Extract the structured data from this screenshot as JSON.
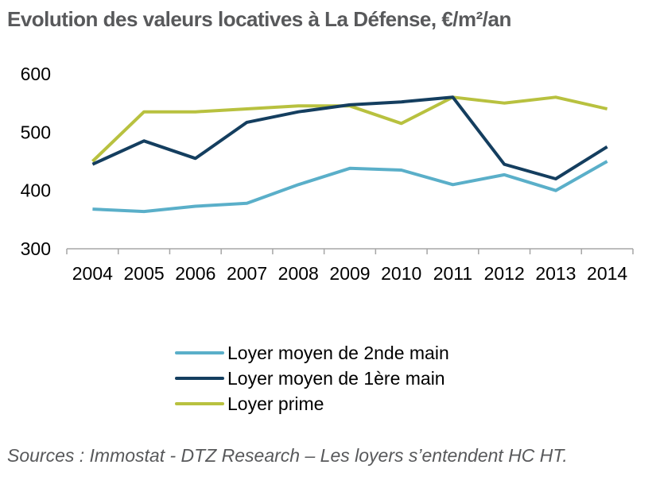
{
  "title": "Evolution des valeurs locatives à La Défense, €/m²/an",
  "source": "Sources : Immostat - DTZ Research – Les loyers s’entendent HC HT.",
  "chart_data": {
    "type": "line",
    "title": "Evolution des valeurs locatives à La Défense, €/m²/an",
    "xlabel": "",
    "ylabel": "",
    "x": [
      "2004",
      "2005",
      "2006",
      "2007",
      "2008",
      "2009",
      "2010",
      "2011",
      "2012",
      "2013",
      "2014"
    ],
    "ylim": [
      300,
      600
    ],
    "yticks": [
      "300",
      "400",
      "500",
      "600"
    ],
    "grid": false,
    "legend_position": "bottom",
    "series": [
      {
        "name": "Loyer moyen de 2nde main",
        "color": "#5aafc9",
        "values": [
          368,
          364,
          373,
          378,
          410,
          438,
          435,
          410,
          427,
          400,
          450
        ]
      },
      {
        "name": "Loyer moyen de 1ère main",
        "color": "#143e5f",
        "values": [
          445,
          485,
          455,
          517,
          535,
          547,
          552,
          560,
          445,
          420,
          475
        ]
      },
      {
        "name": "Loyer prime",
        "color": "#b8c13f",
        "values": [
          450,
          535,
          535,
          540,
          545,
          545,
          515,
          560,
          550,
          560,
          540
        ]
      }
    ]
  }
}
